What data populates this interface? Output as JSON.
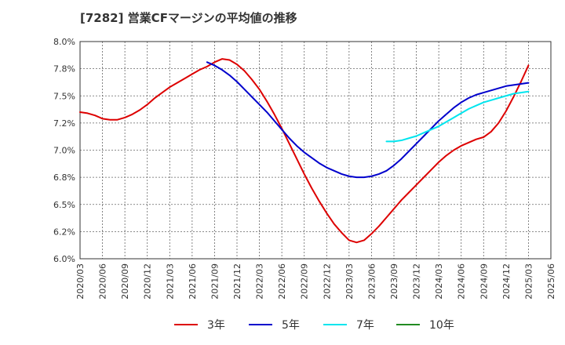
{
  "chart_data": {
    "type": "line",
    "title": "[7282]  営業CFマージンの平均値の推移",
    "xlabel": "",
    "ylabel": "",
    "ylim": [
      6.0,
      8.0
    ],
    "y_ticks": [
      "6.0%",
      "6.2%",
      "6.5%",
      "6.8%",
      "7.0%",
      "7.2%",
      "7.5%",
      "7.8%",
      "8.0%"
    ],
    "x_ticks": [
      "2020/03",
      "2020/06",
      "2020/09",
      "2020/12",
      "2021/03",
      "2021/06",
      "2021/09",
      "2021/12",
      "2022/03",
      "2022/06",
      "2022/09",
      "2022/12",
      "2023/03",
      "2023/06",
      "2023/09",
      "2023/12",
      "2024/03",
      "2024/06",
      "2024/09",
      "2024/12",
      "2025/03",
      "2025/06"
    ],
    "grid": true,
    "legend_position": "bottom",
    "series": [
      {
        "name": "3年",
        "color": "#dd0000",
        "x": [
          "2020/03",
          "2020/04",
          "2020/05",
          "2020/06",
          "2020/07",
          "2020/08",
          "2020/09",
          "2020/10",
          "2020/11",
          "2020/12",
          "2021/01",
          "2021/02",
          "2021/03",
          "2021/04",
          "2021/05",
          "2021/06",
          "2021/07",
          "2021/08",
          "2021/09",
          "2021/10",
          "2021/11",
          "2021/12",
          "2022/01",
          "2022/02",
          "2022/03",
          "2022/04",
          "2022/05",
          "2022/06",
          "2022/07",
          "2022/08",
          "2022/09",
          "2022/10",
          "2022/11",
          "2022/12",
          "2023/01",
          "2023/02",
          "2023/03",
          "2023/04",
          "2023/05",
          "2023/06",
          "2023/07",
          "2023/08",
          "2023/09",
          "2023/10",
          "2023/11",
          "2023/12",
          "2024/01",
          "2024/02",
          "2024/03",
          "2024/04",
          "2024/05",
          "2024/06",
          "2024/07",
          "2024/08",
          "2024/09",
          "2024/10",
          "2024/11",
          "2024/12",
          "2025/01",
          "2025/02",
          "2025/03"
        ],
        "values": [
          7.35,
          7.34,
          7.32,
          7.29,
          7.28,
          7.28,
          7.3,
          7.33,
          7.37,
          7.42,
          7.48,
          7.53,
          7.58,
          7.62,
          7.66,
          7.7,
          7.74,
          7.77,
          7.81,
          7.84,
          7.83,
          7.79,
          7.73,
          7.65,
          7.56,
          7.45,
          7.33,
          7.2,
          7.06,
          6.92,
          6.78,
          6.65,
          6.53,
          6.42,
          6.32,
          6.24,
          6.17,
          6.15,
          6.17,
          6.23,
          6.3,
          6.38,
          6.46,
          6.54,
          6.61,
          6.68,
          6.75,
          6.82,
          6.89,
          6.95,
          7.0,
          7.04,
          7.07,
          7.1,
          7.12,
          7.17,
          7.25,
          7.36,
          7.49,
          7.63,
          7.78
        ]
      },
      {
        "name": "5年",
        "color": "#0000cc",
        "x": [
          "2021/08",
          "2021/09",
          "2021/10",
          "2021/11",
          "2021/12",
          "2022/01",
          "2022/02",
          "2022/03",
          "2022/04",
          "2022/05",
          "2022/06",
          "2022/07",
          "2022/08",
          "2022/09",
          "2022/10",
          "2022/11",
          "2022/12",
          "2023/01",
          "2023/02",
          "2023/03",
          "2023/04",
          "2023/05",
          "2023/06",
          "2023/07",
          "2023/08",
          "2023/09",
          "2023/10",
          "2023/11",
          "2023/12",
          "2024/01",
          "2024/02",
          "2024/03",
          "2024/04",
          "2024/05",
          "2024/06",
          "2024/07",
          "2024/08",
          "2024/09",
          "2024/10",
          "2024/11",
          "2024/12",
          "2025/01",
          "2025/02",
          "2025/03"
        ],
        "values": [
          7.81,
          7.78,
          7.74,
          7.69,
          7.63,
          7.56,
          7.49,
          7.42,
          7.35,
          7.27,
          7.19,
          7.11,
          7.04,
          6.98,
          6.93,
          6.88,
          6.84,
          6.81,
          6.78,
          6.76,
          6.75,
          6.75,
          6.76,
          6.78,
          6.81,
          6.86,
          6.92,
          6.99,
          7.06,
          7.13,
          7.2,
          7.27,
          7.33,
          7.39,
          7.44,
          7.48,
          7.51,
          7.53,
          7.55,
          7.57,
          7.59,
          7.6,
          7.61,
          7.62
        ]
      },
      {
        "name": "7年",
        "color": "#00e5ee",
        "x": [
          "2023/08",
          "2023/09",
          "2023/10",
          "2023/11",
          "2023/12",
          "2024/01",
          "2024/02",
          "2024/03",
          "2024/04",
          "2024/05",
          "2024/06",
          "2024/07",
          "2024/08",
          "2024/09",
          "2024/10",
          "2024/11",
          "2024/12",
          "2025/01",
          "2025/02",
          "2025/03"
        ],
        "values": [
          7.08,
          7.08,
          7.09,
          7.11,
          7.13,
          7.16,
          7.19,
          7.22,
          7.26,
          7.3,
          7.34,
          7.38,
          7.41,
          7.44,
          7.46,
          7.48,
          7.5,
          7.52,
          7.53,
          7.54
        ]
      },
      {
        "name": "10年",
        "color": "#228b22",
        "x": [],
        "values": []
      }
    ]
  }
}
